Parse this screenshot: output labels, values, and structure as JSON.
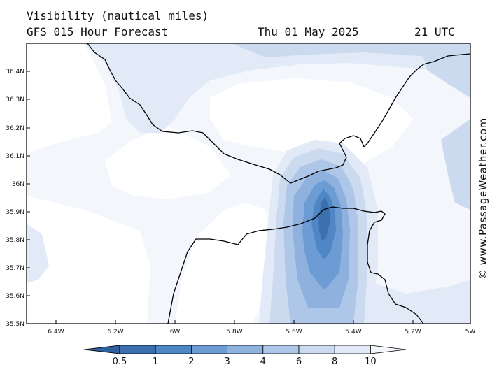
{
  "header": {
    "title": "Visibility (nautical miles)",
    "subtitle": "GFS 015 Hour Forecast",
    "date": "Thu 01 May 2025",
    "time": "21 UTC"
  },
  "credit": "© www.PassageWeather.com",
  "map": {
    "lat_labels": [
      "36.4N",
      "36.3N",
      "36.2N",
      "36.1N",
      "36N",
      "35.9N",
      "35.8N",
      "35.7N",
      "35.6N",
      "35.5N"
    ],
    "lon_labels": [
      "6.4W",
      "6.2W",
      "6W",
      "5.8W",
      "5.6W",
      "5.4W",
      "5.2W",
      "5W"
    ]
  },
  "colorbar": {
    "labels": [
      "0.5",
      "1",
      "2",
      "3",
      "4",
      "6",
      "8",
      "10"
    ],
    "colors": [
      "#3c6fae",
      "#4f86c6",
      "#6d9bd4",
      "#8eb1de",
      "#aec7e8",
      "#cbdaef",
      "#e1eaf6",
      "#f3f7fc"
    ]
  }
}
